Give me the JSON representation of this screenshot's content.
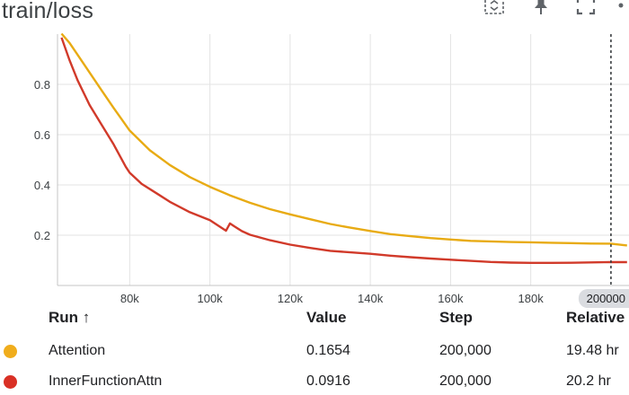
{
  "header": {
    "title": "train/loss",
    "icons": [
      "fit-domain-icon",
      "pin-icon",
      "fullscreen-icon",
      "more-icon"
    ]
  },
  "chart_data": {
    "type": "line",
    "title": "train/loss",
    "xlabel": "",
    "ylabel": "",
    "xlim": [
      62000,
      204500
    ],
    "ylim": [
      0,
      1.0
    ],
    "x_ticks": [
      {
        "value": 80000,
        "label": "80k"
      },
      {
        "value": 100000,
        "label": "100k"
      },
      {
        "value": 120000,
        "label": "120k"
      },
      {
        "value": 140000,
        "label": "140k"
      },
      {
        "value": 160000,
        "label": "160k"
      },
      {
        "value": 180000,
        "label": "180k"
      },
      {
        "value": 200000,
        "label": "200000 ×"
      }
    ],
    "y_ticks": [
      {
        "value": 0.2,
        "label": "0.2"
      },
      {
        "value": 0.4,
        "label": "0.4"
      },
      {
        "value": 0.6,
        "label": "0.6"
      },
      {
        "value": 0.8,
        "label": "0.8"
      }
    ],
    "grid": true,
    "cursor_x": 200000,
    "series": [
      {
        "name": "Attention",
        "color": "#e8ab14",
        "x": [
          63000,
          65000,
          67000,
          70000,
          73000,
          76000,
          80000,
          85000,
          90000,
          95000,
          100000,
          105000,
          110000,
          115000,
          120000,
          125000,
          130000,
          135000,
          140000,
          145000,
          150000,
          155000,
          160000,
          165000,
          170000,
          175000,
          180000,
          185000,
          190000,
          195000,
          200000,
          204000
        ],
        "y": [
          1.0,
          0.965,
          0.92,
          0.85,
          0.78,
          0.71,
          0.62,
          0.54,
          0.48,
          0.43,
          0.39,
          0.355,
          0.325,
          0.3,
          0.28,
          0.262,
          0.245,
          0.232,
          0.22,
          0.208,
          0.2,
          0.192,
          0.185,
          0.178,
          0.174,
          0.17,
          0.168,
          0.166,
          0.165,
          0.164,
          0.1654,
          0.16
        ]
      },
      {
        "name": "InnerFunctionAttn",
        "color": "#d13a2a",
        "x": [
          63000,
          65000,
          67000,
          70000,
          73000,
          76000,
          79000,
          80000,
          83000,
          87000,
          90000,
          95000,
          100000,
          104000,
          105000,
          106000,
          108000,
          110000,
          115000,
          120000,
          125000,
          130000,
          135000,
          140000,
          145000,
          150000,
          155000,
          160000,
          165000,
          170000,
          175000,
          180000,
          185000,
          190000,
          195000,
          200000,
          204000
        ],
        "y": [
          0.99,
          0.9,
          0.82,
          0.72,
          0.64,
          0.56,
          0.47,
          0.445,
          0.4,
          0.36,
          0.33,
          0.29,
          0.26,
          0.22,
          0.25,
          0.24,
          0.22,
          0.205,
          0.182,
          0.163,
          0.148,
          0.135,
          0.128,
          0.122,
          0.115,
          0.11,
          0.106,
          0.103,
          0.1,
          0.097,
          0.095,
          0.094,
          0.093,
          0.092,
          0.092,
          0.0916,
          0.09
        ]
      }
    ]
  },
  "table": {
    "headers": {
      "run": "Run ↑",
      "value": "Value",
      "step": "Step",
      "relative": "Relative"
    },
    "rows": [
      {
        "run": "Attention",
        "color": "#f0ad1c",
        "value": "0.1654",
        "step": "200,000",
        "relative": "19.48 hr"
      },
      {
        "run": "InnerFunctionAttn",
        "color": "#d93025",
        "value": "0.0916",
        "step": "200,000",
        "relative": "20.2 hr"
      }
    ]
  }
}
